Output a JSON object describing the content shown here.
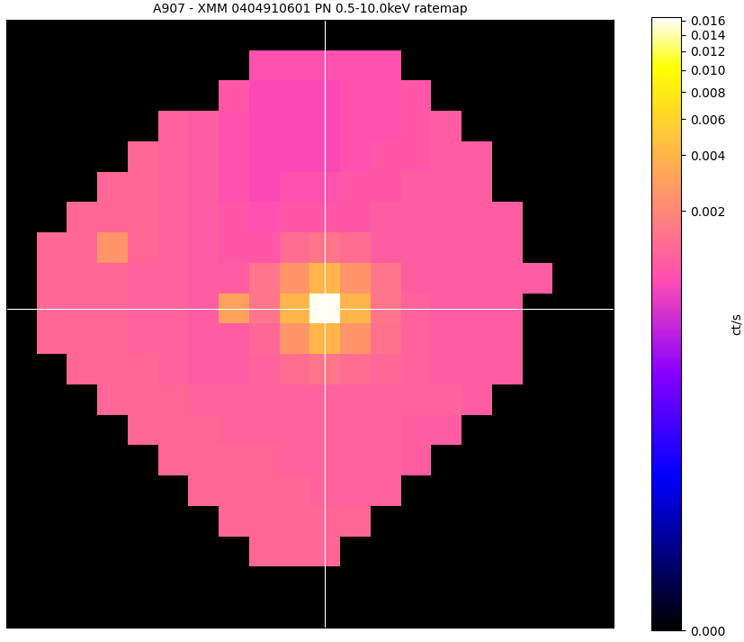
{
  "chart_data": {
    "type": "heatmap",
    "title": "A907 - XMM 0404910601 PN 0.5-10.0keV ratemap",
    "colorbar_label": "ct/s",
    "color": "gnuplot2",
    "tick_labels": false,
    "clim": [
      0,
      0.0165
    ],
    "cticks": [
      {
        "value": 0.0,
        "label": "0.000"
      },
      {
        "value": 0.002,
        "label": "0.002"
      },
      {
        "value": 0.004,
        "label": "0.004"
      },
      {
        "value": 0.006,
        "label": "0.006"
      },
      {
        "value": 0.008,
        "label": "0.008"
      },
      {
        "value": 0.01,
        "label": "0.010"
      },
      {
        "value": 0.012,
        "label": "0.012"
      },
      {
        "value": 0.014,
        "label": "0.014"
      },
      {
        "value": 0.016,
        "label": "0.016"
      }
    ],
    "cells": [
      [
        0,
        0,
        0,
        0,
        0,
        0,
        0,
        0,
        0,
        0,
        0,
        0,
        0,
        0,
        0,
        0,
        0,
        0,
        0,
        0
      ],
      [
        0,
        0,
        0,
        0,
        0,
        0,
        0,
        0,
        0.0008,
        0.0008,
        0.0008,
        0.0008,
        0.0008,
        0,
        0,
        0,
        0,
        0,
        0,
        0
      ],
      [
        0,
        0,
        0,
        0,
        0,
        0,
        0,
        0.0009,
        0.0007,
        0.0007,
        0.0007,
        0.0008,
        0.0008,
        0.0009,
        0,
        0,
        0,
        0,
        0,
        0
      ],
      [
        0,
        0,
        0,
        0,
        0,
        0.0011,
        0.001,
        0.0008,
        0.0007,
        0.0007,
        0.0007,
        0.0008,
        0.0008,
        0.0009,
        0.001,
        0,
        0,
        0,
        0,
        0
      ],
      [
        0,
        0,
        0,
        0,
        0.0012,
        0.0011,
        0.001,
        0.0008,
        0.0007,
        0.0007,
        0.0007,
        0.0008,
        0.0009,
        0.0009,
        0.001,
        0.001,
        0,
        0,
        0,
        0
      ],
      [
        0,
        0,
        0,
        0.0012,
        0.0012,
        0.0011,
        0.001,
        0.0008,
        0.0007,
        0.0008,
        0.0008,
        0.0009,
        0.0009,
        0.001,
        0.001,
        0.001,
        0,
        0,
        0,
        0
      ],
      [
        0,
        0,
        0.0012,
        0.0012,
        0.0012,
        0.0011,
        0.001,
        0.0009,
        0.0008,
        0.0009,
        0.0009,
        0.0009,
        0.001,
        0.001,
        0.001,
        0.001,
        0.001,
        0,
        0,
        0
      ],
      [
        0,
        0.0012,
        0.0012,
        0.0025,
        0.0012,
        0.0011,
        0.001,
        0.0009,
        0.0009,
        0.0013,
        0.0015,
        0.0013,
        0.001,
        0.001,
        0.001,
        0.001,
        0.001,
        0,
        0,
        0
      ],
      [
        0,
        0.0012,
        0.0012,
        0.0012,
        0.0011,
        0.0011,
        0.001,
        0.001,
        0.0015,
        0.0025,
        0.004,
        0.0025,
        0.0015,
        0.001,
        0.001,
        0.001,
        0.001,
        0.001,
        0,
        0
      ],
      [
        0,
        0.0012,
        0.0012,
        0.0012,
        0.0011,
        0.0011,
        0.001,
        0.003,
        0.0015,
        0.004,
        0.016,
        0.004,
        0.0015,
        0.0011,
        0.001,
        0.001,
        0.001,
        0,
        0,
        0
      ],
      [
        0,
        0.0012,
        0.0012,
        0.0012,
        0.0011,
        0.0011,
        0.001,
        0.001,
        0.0012,
        0.0025,
        0.004,
        0.0025,
        0.0014,
        0.0011,
        0.001,
        0.001,
        0.001,
        0,
        0,
        0
      ],
      [
        0,
        0,
        0.0012,
        0.0012,
        0.0012,
        0.0011,
        0.001,
        0.001,
        0.0011,
        0.0013,
        0.0015,
        0.0013,
        0.0012,
        0.0011,
        0.001,
        0.001,
        0.001,
        0,
        0,
        0
      ],
      [
        0,
        0,
        0,
        0.0012,
        0.0012,
        0.0012,
        0.0011,
        0.0011,
        0.0011,
        0.0011,
        0.0011,
        0.0011,
        0.0011,
        0.0011,
        0.0011,
        0.001,
        0,
        0,
        0,
        0
      ],
      [
        0,
        0,
        0,
        0,
        0.0012,
        0.0012,
        0.0012,
        0.0011,
        0.0011,
        0.0011,
        0.0011,
        0.0011,
        0.0011,
        0.001,
        0.001,
        0,
        0,
        0,
        0,
        0
      ],
      [
        0,
        0,
        0,
        0,
        0,
        0.0012,
        0.0012,
        0.0012,
        0.0012,
        0.0011,
        0.0011,
        0.0011,
        0.0011,
        0.001,
        0,
        0,
        0,
        0,
        0,
        0
      ],
      [
        0,
        0,
        0,
        0,
        0,
        0,
        0.0012,
        0.0012,
        0.0012,
        0.0012,
        0.0011,
        0.0011,
        0.0011,
        0,
        0,
        0,
        0,
        0,
        0,
        0
      ],
      [
        0,
        0,
        0,
        0,
        0,
        0,
        0,
        0.0012,
        0.0012,
        0.0012,
        0.0012,
        0.0012,
        0,
        0,
        0,
        0,
        0,
        0,
        0,
        0
      ],
      [
        0,
        0,
        0,
        0,
        0,
        0,
        0,
        0,
        0.0012,
        0.0012,
        0.0012,
        0,
        0,
        0,
        0,
        0,
        0,
        0,
        0,
        0
      ],
      [
        0,
        0,
        0,
        0,
        0,
        0,
        0,
        0,
        0,
        0,
        0,
        0,
        0,
        0,
        0,
        0,
        0,
        0,
        0,
        0
      ],
      [
        0,
        0,
        0,
        0,
        0,
        0,
        0,
        0,
        0,
        0,
        0,
        0,
        0,
        0,
        0,
        0,
        0,
        0,
        0,
        0
      ]
    ]
  }
}
